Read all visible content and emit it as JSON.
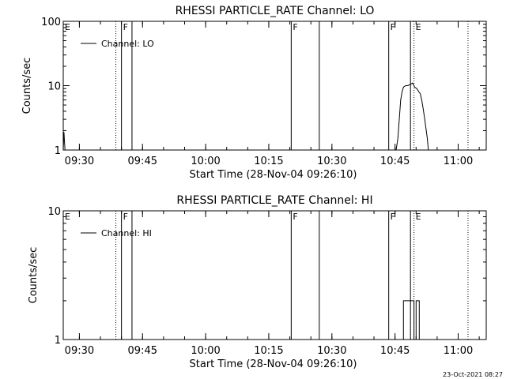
{
  "footer": {
    "timestamp": "23-Oct-2021 08:27"
  },
  "chart_data": [
    {
      "type": "line",
      "title": "RHESSI PARTICLE_RATE Channel: LO",
      "xlabel": "Start Time (28-Nov-04 09:26:10)",
      "ylabel": "Counts/sec",
      "y_scale": "log",
      "ylim": [
        1,
        100
      ],
      "y_ticks": [
        "1",
        "10",
        "100"
      ],
      "xlim": [
        "09:26:10",
        "11:06:40"
      ],
      "x_ticks": [
        "09:30",
        "09:45",
        "10:00",
        "10:15",
        "10:30",
        "10:45",
        "11:00"
      ],
      "legend": {
        "position": "top-left",
        "entries": [
          "Channel: LO"
        ]
      },
      "markers": [
        {
          "label": "E",
          "time": "09:26:10",
          "style": "none"
        },
        {
          "label": "",
          "time": "09:38:40",
          "style": "dotted"
        },
        {
          "label": "F",
          "time": "09:40:00",
          "style": "solid"
        },
        {
          "label": "",
          "time": "09:42:30",
          "style": "solid"
        },
        {
          "label": "F",
          "time": "10:20:20",
          "style": "solid"
        },
        {
          "label": "",
          "time": "10:27:00",
          "style": "solid"
        },
        {
          "label": "F",
          "time": "10:43:30",
          "style": "solid"
        },
        {
          "label": "",
          "time": "10:48:40",
          "style": "solid"
        },
        {
          "label": "E",
          "time": "10:49:30",
          "style": "dotted"
        },
        {
          "label": "",
          "time": "11:02:20",
          "style": "dotted"
        }
      ],
      "series": [
        {
          "values": [
            [
              "09:26:10",
              1
            ],
            [
              "09:26:20",
              1.9
            ],
            [
              "09:26:35",
              1
            ],
            [
              "10:45:15",
              1
            ],
            [
              "10:45:40",
              1.5
            ],
            [
              "10:46:00",
              3
            ],
            [
              "10:46:20",
              6
            ],
            [
              "10:46:40",
              8
            ],
            [
              "10:47:00",
              9.5
            ],
            [
              "10:47:30",
              10
            ],
            [
              "10:48:00",
              10
            ],
            [
              "10:48:40",
              10.5
            ],
            [
              "10:49:10",
              11
            ],
            [
              "10:49:40",
              9.5
            ],
            [
              "10:50:10",
              9
            ],
            [
              "10:50:40",
              8
            ],
            [
              "10:51:00",
              7.5
            ],
            [
              "10:51:20",
              6
            ],
            [
              "10:51:40",
              4.5
            ],
            [
              "10:52:00",
              3.2
            ],
            [
              "10:52:20",
              2.2
            ],
            [
              "10:52:40",
              1.5
            ],
            [
              "10:52:55",
              1
            ]
          ]
        }
      ]
    },
    {
      "type": "line",
      "title": "RHESSI PARTICLE_RATE Channel: HI",
      "xlabel": "Start Time (28-Nov-04 09:26:10)",
      "ylabel": "Counts/sec",
      "y_scale": "log",
      "ylim": [
        1,
        10
      ],
      "y_ticks": [
        "1",
        "10"
      ],
      "xlim": [
        "09:26:10",
        "11:06:40"
      ],
      "x_ticks": [
        "09:30",
        "09:45",
        "10:00",
        "10:15",
        "10:30",
        "10:45",
        "11:00"
      ],
      "legend": {
        "position": "top-left",
        "entries": [
          "Channel: HI"
        ]
      },
      "markers": [
        {
          "label": "E",
          "time": "09:26:10",
          "style": "none"
        },
        {
          "label": "",
          "time": "09:38:40",
          "style": "dotted"
        },
        {
          "label": "F",
          "time": "09:40:00",
          "style": "solid"
        },
        {
          "label": "",
          "time": "09:42:30",
          "style": "solid"
        },
        {
          "label": "F",
          "time": "10:20:20",
          "style": "solid"
        },
        {
          "label": "",
          "time": "10:27:00",
          "style": "solid"
        },
        {
          "label": "F",
          "time": "10:43:30",
          "style": "solid"
        },
        {
          "label": "",
          "time": "10:48:40",
          "style": "solid"
        },
        {
          "label": "E",
          "time": "10:49:30",
          "style": "dotted"
        },
        {
          "label": "",
          "time": "11:02:20",
          "style": "dotted"
        }
      ],
      "series": [
        {
          "values": [
            [
              "10:47:00",
              1
            ],
            [
              "10:47:00",
              2
            ],
            [
              "10:49:30",
              2
            ],
            [
              "10:49:30",
              1
            ],
            [
              "10:50:00",
              1
            ],
            [
              "10:50:00",
              2
            ],
            [
              "10:50:45",
              2
            ],
            [
              "10:50:45",
              1
            ]
          ]
        }
      ]
    }
  ]
}
